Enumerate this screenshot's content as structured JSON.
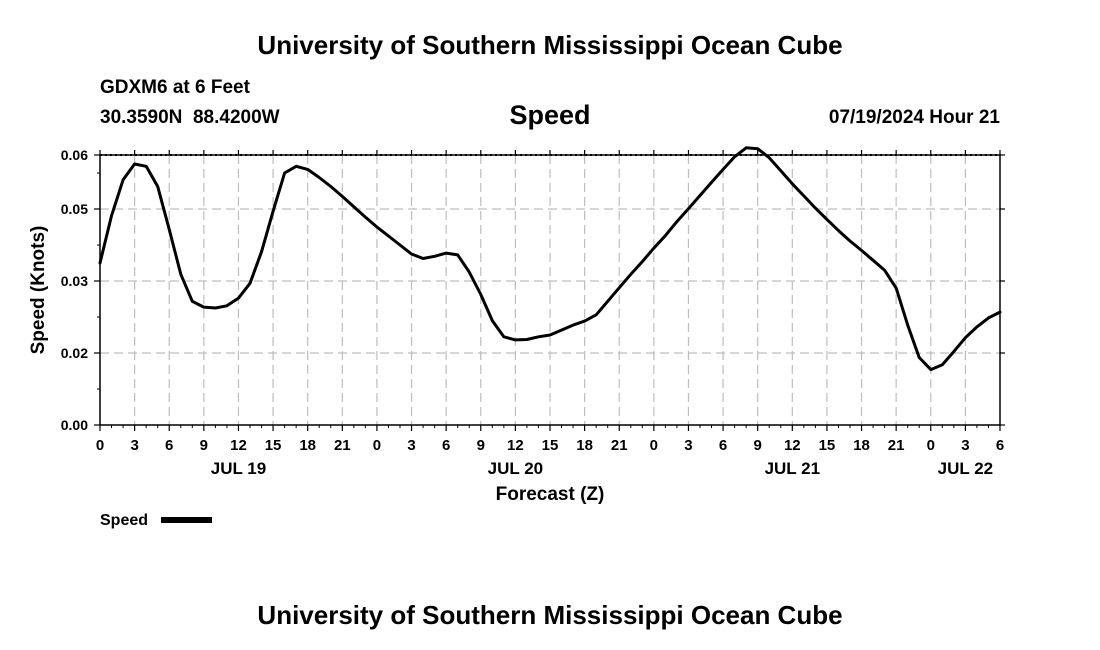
{
  "header": {
    "title": "University of Southern Mississippi Ocean Cube",
    "station": "GDXM6 at 6 Feet",
    "coords": "30.3590N  88.4200W",
    "panel_title": "Speed",
    "datetime": "07/19/2024 Hour 21"
  },
  "footer": {
    "title": "University of Southern Mississippi Ocean Cube"
  },
  "chart_data": {
    "type": "line",
    "title": "Speed",
    "xlabel": "Forecast (Z)",
    "ylabel": "Speed (Knots)",
    "x_unit": "hours (Z) from JUL 19 00Z",
    "xlim": [
      0,
      78
    ],
    "ylim": [
      0.0,
      0.06
    ],
    "yticks": [
      "0.00",
      "0.02",
      "0.03",
      "0.05",
      "0.06"
    ],
    "ytick_values": [
      0.0,
      0.016,
      0.032,
      0.048,
      0.064
    ],
    "xtick_hours": [
      0,
      3,
      6,
      9,
      12,
      15,
      18,
      21,
      24,
      27,
      30,
      33,
      36,
      39,
      42,
      45,
      48,
      51,
      54,
      57,
      60,
      63,
      66,
      69,
      72,
      75,
      78
    ],
    "xtick_labels": [
      "0",
      "3",
      "6",
      "9",
      "12",
      "15",
      "18",
      "21",
      "0",
      "3",
      "6",
      "9",
      "12",
      "15",
      "18",
      "21",
      "0",
      "3",
      "6",
      "9",
      "12",
      "15",
      "18",
      "21",
      "0",
      "3",
      "6"
    ],
    "date_labels": [
      {
        "hour": 12,
        "label": "JUL 19"
      },
      {
        "hour": 36,
        "label": "JUL 20"
      },
      {
        "hour": 60,
        "label": "JUL 21"
      },
      {
        "hour": 75,
        "label": "JUL 22"
      }
    ],
    "grid": true,
    "legend": "bottom-left",
    "series": [
      {
        "name": "Speed",
        "color": "#000000",
        "x": [
          0,
          1,
          2,
          3,
          4,
          5,
          6,
          7,
          8,
          9,
          10,
          11,
          12,
          13,
          14,
          15,
          16,
          17,
          18,
          19,
          20,
          21,
          22,
          23,
          24,
          25,
          26,
          27,
          28,
          29,
          30,
          31,
          32,
          33,
          34,
          35,
          36,
          37,
          38,
          39,
          40,
          41,
          42,
          43,
          44,
          45,
          46,
          47,
          48,
          49,
          50,
          51,
          52,
          53,
          54,
          55,
          56,
          57,
          58,
          59,
          60,
          61,
          62,
          63,
          64,
          65,
          66,
          67,
          68,
          69,
          70,
          71,
          72,
          73,
          74,
          75,
          76,
          77,
          78
        ],
        "y": [
          0.036,
          0.0465,
          0.0545,
          0.058,
          0.0575,
          0.053,
          0.0435,
          0.0335,
          0.0275,
          0.0262,
          0.026,
          0.0265,
          0.0282,
          0.0315,
          0.0385,
          0.0475,
          0.056,
          0.0575,
          0.0568,
          0.055,
          0.053,
          0.0508,
          0.0485,
          0.0462,
          0.044,
          0.042,
          0.04,
          0.038,
          0.037,
          0.0375,
          0.0382,
          0.0378,
          0.034,
          0.029,
          0.0232,
          0.0196,
          0.0189,
          0.019,
          0.0196,
          0.02,
          0.0211,
          0.0222,
          0.0231,
          0.0245,
          0.0275,
          0.0305,
          0.0335,
          0.0363,
          0.0393,
          0.0421,
          0.0452,
          0.0481,
          0.051,
          0.0539,
          0.0568,
          0.0596,
          0.0616,
          0.0614,
          0.0594,
          0.0565,
          0.0536,
          0.0509,
          0.0482,
          0.0457,
          0.0432,
          0.0409,
          0.0388,
          0.0366,
          0.0344,
          0.0304,
          0.0222,
          0.015,
          0.0123,
          0.0134,
          0.0163,
          0.0194,
          0.0218,
          0.0238,
          0.0251
        ]
      }
    ]
  }
}
